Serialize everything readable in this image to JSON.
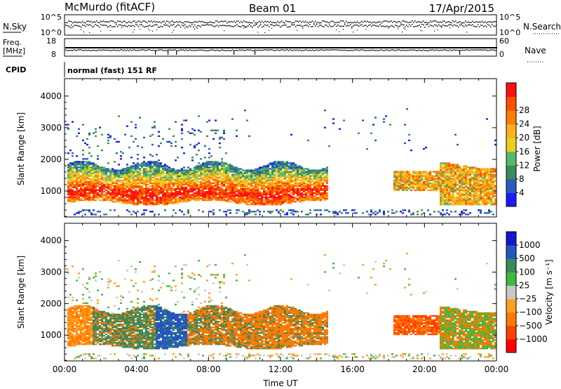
{
  "header": {
    "station": "McMurdo (fitACF)",
    "beam": "Beam 01",
    "date": "17/Apr/2015"
  },
  "top_panel": {
    "left_label": "N.Sky",
    "right_label": "N.Search",
    "left_ticks": [
      "10^5",
      "10^0"
    ],
    "right_ticks": [
      "10^5",
      "10^0"
    ]
  },
  "freq_panel": {
    "left_label_1": "Freq.",
    "left_label_2": "[MHz]",
    "right_label": "Nave",
    "left_ticks": [
      "18",
      "8"
    ],
    "right_ticks": [
      "60",
      "0"
    ]
  },
  "cpid": {
    "label": "CPID",
    "text": "normal (fast) 151 RF"
  },
  "colors": {
    "power_scale": [
      "#1a1aff",
      "#2b5bbf",
      "#3d8a5c",
      "#55b86a",
      "#e8d020",
      "#ffb020",
      "#ff8000",
      "#ff5000",
      "#ff1010"
    ],
    "velocity_scale": [
      "#ff0000",
      "#ff4000",
      "#ff7a00",
      "#ffa020",
      "#c8c8c8",
      "#3fb93f",
      "#3a8a5c",
      "#2555c0",
      "#1616d0"
    ]
  },
  "chart_data": [
    {
      "type": "heatmap",
      "name": "power-panel",
      "ylabel": "Slant Range [km]",
      "xlabel": "",
      "ylim": [
        180,
        4550
      ],
      "xlim": [
        0,
        24
      ],
      "y_ticks": [
        "1000",
        "2000",
        "3000",
        "4000"
      ],
      "y_tick_values": [
        1000,
        2000,
        3000,
        4000
      ],
      "colorbar_label": "Power [dB]",
      "colorbar_ticks": [
        "4",
        "8",
        "12",
        "16",
        "20",
        "24",
        "28"
      ],
      "data_hint": "Slant range vs time coloured by backscatter power in dB"
    },
    {
      "type": "heatmap",
      "name": "velocity-panel",
      "ylabel": "Slant Range [km]",
      "xlabel": "Time UT",
      "ylim": [
        180,
        4550
      ],
      "xlim": [
        0,
        24
      ],
      "y_ticks": [
        "1000",
        "2000",
        "3000",
        "4000"
      ],
      "y_tick_values": [
        1000,
        2000,
        3000,
        4000
      ],
      "x_ticks": [
        "00:00",
        "04:00",
        "08:00",
        "12:00",
        "16:00",
        "20:00",
        "00:00"
      ],
      "x_tick_values": [
        0,
        4,
        8,
        12,
        16,
        20,
        24
      ],
      "colorbar_label": "Velocity [m s⁻¹]",
      "colorbar_ticks": [
        "1000",
        "500",
        "100",
        "25",
        "−25",
        "−100",
        "−500",
        "−1000"
      ],
      "data_hint": "Slant range vs time coloured by line-of-sight velocity in m/s"
    }
  ]
}
